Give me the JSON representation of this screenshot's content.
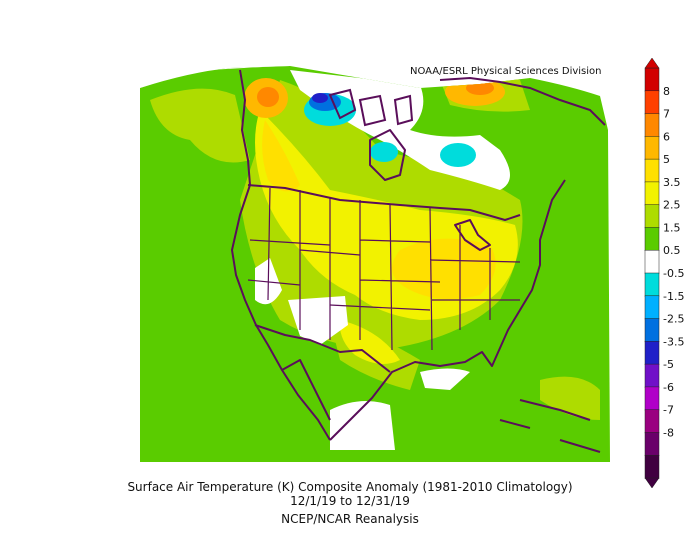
{
  "credit": "NOAA/ESRL Physical Sciences Division",
  "caption": {
    "line1": "Surface Air Temperature (K) Composite Anomaly (1981-2010 Climatology)",
    "line2": "12/1/19  to 12/31/19",
    "line3": "NCEP/NCAR Reanalysis"
  },
  "colorbar": {
    "labels": [
      "8",
      "7",
      "6",
      "5",
      "3.5",
      "2.5",
      "1.5",
      "0.5",
      "-0.5",
      "-1.5",
      "-2.5",
      "-3.5",
      "-5",
      "-6",
      "-7",
      "-8"
    ],
    "colors": [
      "#d20000",
      "#ff4000",
      "#ff8800",
      "#ffb800",
      "#ffe000",
      "#f2f200",
      "#aedc00",
      "#5acc00",
      "#ffffff",
      "#00dcdc",
      "#00b0ff",
      "#0070e0",
      "#2020c8",
      "#7010c8",
      "#b000c8",
      "#9a0080",
      "#6a006a",
      "#400040"
    ]
  },
  "colors": {
    "land_outline": "#5a0e5a",
    "warm_base": "#5acc00",
    "warm_light": "#aedc00",
    "warm_mid": "#f2f200",
    "warm_strong": "#ffe000",
    "hot": "#ffb800",
    "hotter": "#ff8800",
    "neutral": "#ffffff",
    "cold": "#00dcdc",
    "colder": "#0070e0",
    "coldest": "#2020c8"
  }
}
